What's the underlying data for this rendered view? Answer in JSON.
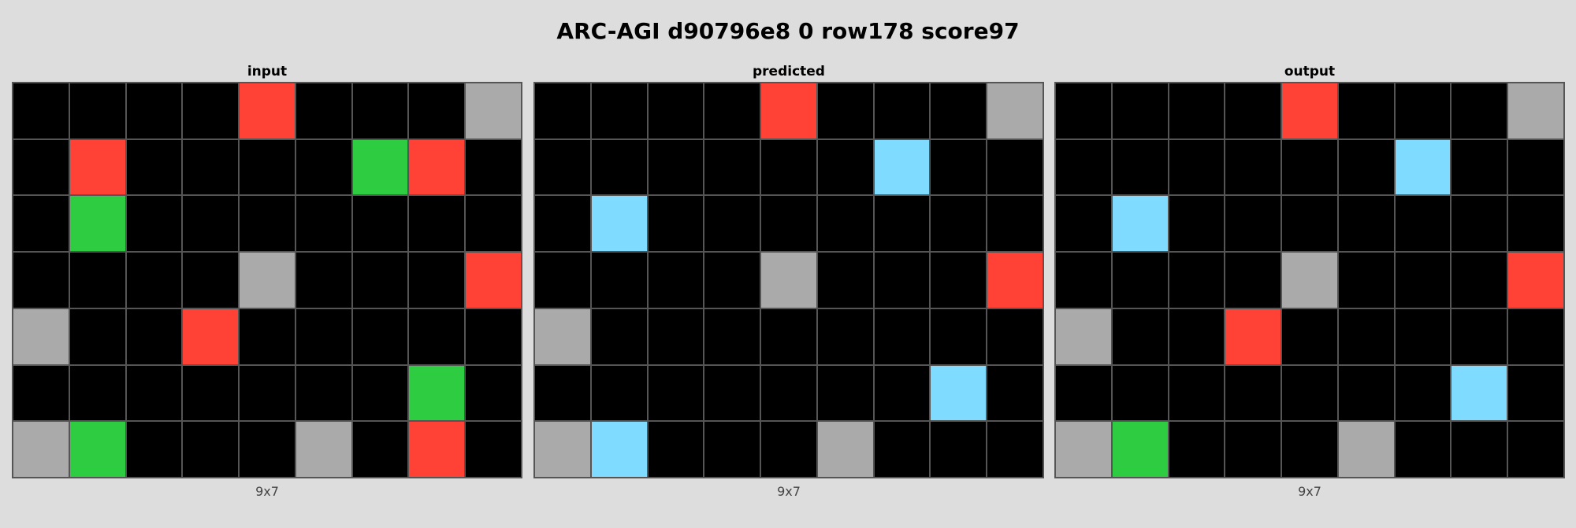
{
  "title": "ARC-AGI d90796e8 0 row178 score97",
  "palette": {
    "0": "#000000",
    "2": "#ff4136",
    "3": "#2ecc40",
    "5": "#aaaaaa",
    "8": "#7fdbff"
  },
  "panels": [
    {
      "label": "input",
      "dims": "9x7",
      "grid": [
        [
          0,
          0,
          0,
          0,
          2,
          0,
          0,
          0,
          5
        ],
        [
          0,
          2,
          0,
          0,
          0,
          0,
          3,
          2,
          0
        ],
        [
          0,
          3,
          0,
          0,
          0,
          0,
          0,
          0,
          0
        ],
        [
          0,
          0,
          0,
          0,
          5,
          0,
          0,
          0,
          2
        ],
        [
          5,
          0,
          0,
          2,
          0,
          0,
          0,
          0,
          0
        ],
        [
          0,
          0,
          0,
          0,
          0,
          0,
          0,
          3,
          0
        ],
        [
          5,
          3,
          0,
          0,
          0,
          5,
          0,
          2,
          0
        ]
      ]
    },
    {
      "label": "predicted",
      "dims": "9x7",
      "grid": [
        [
          0,
          0,
          0,
          0,
          2,
          0,
          0,
          0,
          5
        ],
        [
          0,
          0,
          0,
          0,
          0,
          0,
          8,
          0,
          0
        ],
        [
          0,
          8,
          0,
          0,
          0,
          0,
          0,
          0,
          0
        ],
        [
          0,
          0,
          0,
          0,
          5,
          0,
          0,
          0,
          2
        ],
        [
          5,
          0,
          0,
          0,
          0,
          0,
          0,
          0,
          0
        ],
        [
          0,
          0,
          0,
          0,
          0,
          0,
          0,
          8,
          0
        ],
        [
          5,
          8,
          0,
          0,
          0,
          5,
          0,
          0,
          0
        ]
      ]
    },
    {
      "label": "output",
      "dims": "9x7",
      "grid": [
        [
          0,
          0,
          0,
          0,
          2,
          0,
          0,
          0,
          5
        ],
        [
          0,
          0,
          0,
          0,
          0,
          0,
          8,
          0,
          0
        ],
        [
          0,
          8,
          0,
          0,
          0,
          0,
          0,
          0,
          0
        ],
        [
          0,
          0,
          0,
          0,
          5,
          0,
          0,
          0,
          2
        ],
        [
          5,
          0,
          0,
          2,
          0,
          0,
          0,
          0,
          0
        ],
        [
          0,
          0,
          0,
          0,
          0,
          0,
          0,
          8,
          0
        ],
        [
          5,
          3,
          0,
          0,
          0,
          5,
          0,
          0,
          0
        ]
      ]
    }
  ]
}
